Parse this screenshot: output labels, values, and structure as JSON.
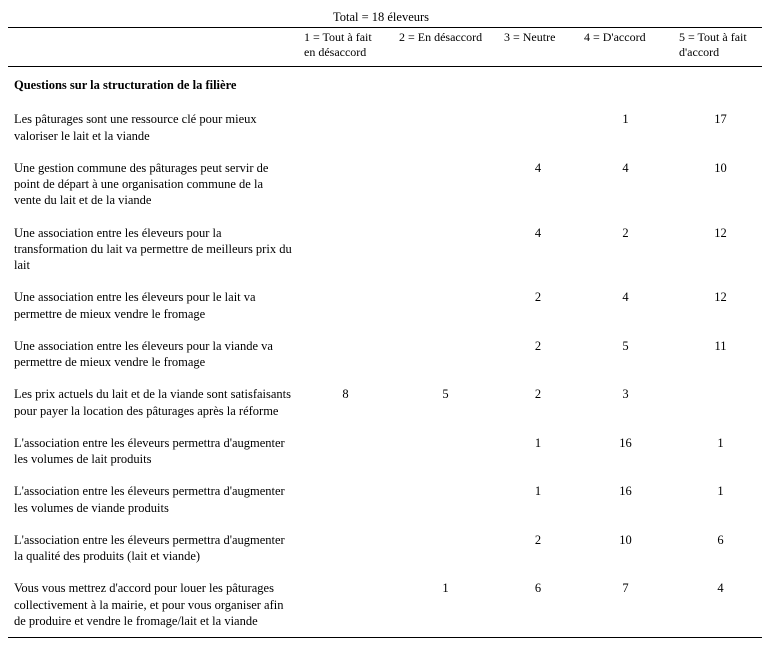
{
  "total_line": "Total = 18 éleveurs",
  "headers": {
    "c1a": "1 = Tout à fait",
    "c1b": "en désaccord",
    "c2": "2 = En désaccord",
    "c3": "3 = Neutre",
    "c4": "4 = D'accord",
    "c5a": "5 = Tout à fait",
    "c5b": "d'accord"
  },
  "section_title": "Questions sur la structuration de la filière",
  "rows": [
    {
      "q": "Les pâturages sont une ressource clé pour mieux valoriser le lait et la viande",
      "v": [
        "",
        "",
        "",
        "1",
        "17"
      ]
    },
    {
      "q": "Une gestion commune des pâturages peut servir de point de départ à une organisation commune de la vente du lait et de la viande",
      "v": [
        "",
        "",
        "4",
        "4",
        "10"
      ]
    },
    {
      "q": "Une association entre les éleveurs pour la transformation du lait va permettre de meilleurs prix du lait",
      "v": [
        "",
        "",
        "4",
        "2",
        "12"
      ]
    },
    {
      "q": "Une association entre les éleveurs pour le lait va permettre de mieux vendre le fromage",
      "v": [
        "",
        "",
        "2",
        "4",
        "12"
      ]
    },
    {
      "q": "Une association entre les éleveurs pour la viande va permettre de mieux vendre le fromage",
      "v": [
        "",
        "",
        "2",
        "5",
        "11"
      ]
    },
    {
      "q": "Les prix actuels du lait et de la viande sont satisfaisants pour payer la location des pâturages après la réforme",
      "v": [
        "8",
        "5",
        "2",
        "3",
        ""
      ]
    },
    {
      "q": "L'association entre les éleveurs permettra d'augmenter les volumes de lait produits",
      "v": [
        "",
        "",
        "1",
        "16",
        "1"
      ]
    },
    {
      "q": "L'association entre les éleveurs permettra d'augmenter les volumes de viande produits",
      "v": [
        "",
        "",
        "1",
        "16",
        "1"
      ]
    },
    {
      "q": "L'association entre les éleveurs permettra d'augmenter la qualité des produits (lait et viande)",
      "v": [
        "",
        "",
        "2",
        "10",
        "6"
      ]
    },
    {
      "q": "Vous vous mettrez d'accord pour louer les pâturages collectivement à la mairie, et pour vous organiser afin de produire et vendre le fromage/lait et la viande",
      "v": [
        "",
        "1",
        "6",
        "7",
        "4"
      ]
    }
  ]
}
